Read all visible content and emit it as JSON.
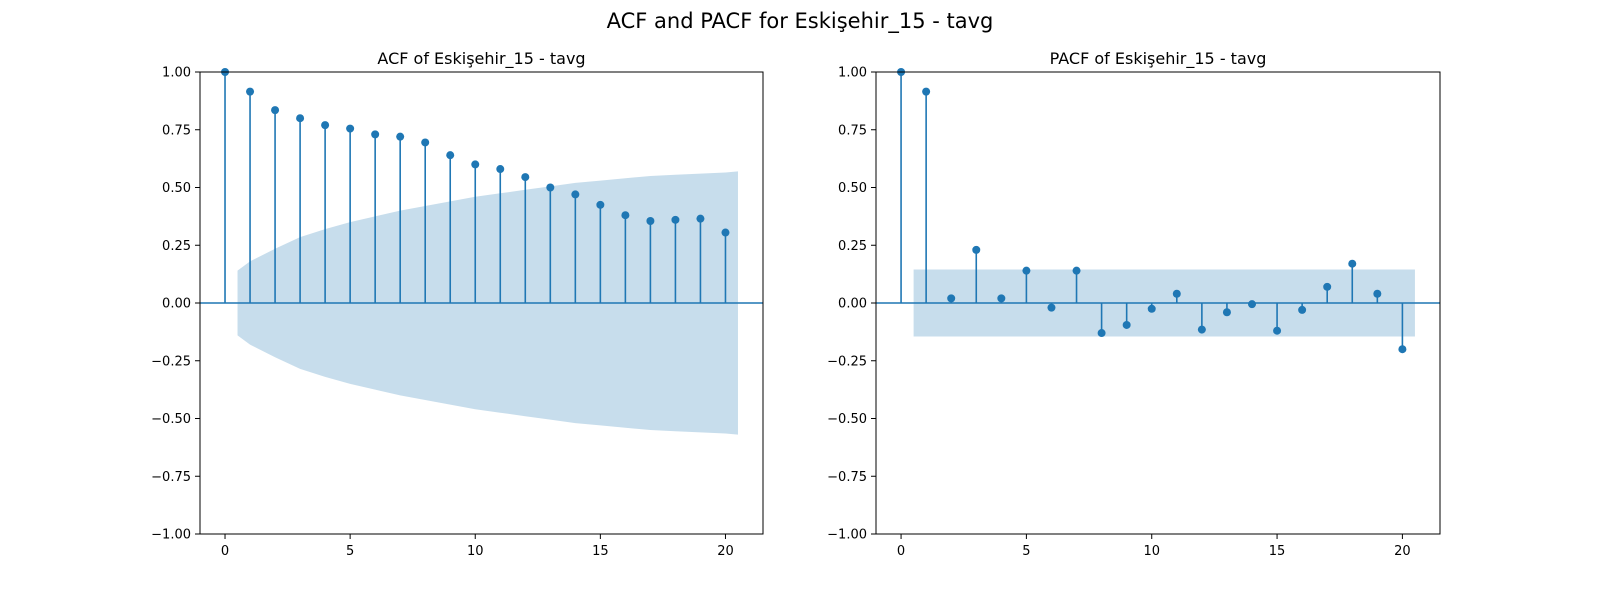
{
  "figure_title": "ACF and PACF for Eskişehir_15 - tavg",
  "colors": {
    "stem": "#1f77b4",
    "confidence_band": "#1f77b4",
    "frame": "#000000",
    "background": "#ffffff"
  },
  "chart_data": [
    {
      "type": "stem",
      "title": "ACF of Eskişehir_15 - tavg",
      "xlabel": "",
      "ylabel": "",
      "xlim": [
        -1,
        21.5
      ],
      "ylim": [
        -1.0,
        1.0
      ],
      "x_ticks": [
        0,
        5,
        10,
        15,
        20
      ],
      "y_ticks": [
        -1.0,
        -0.75,
        -0.5,
        -0.25,
        0.0,
        0.25,
        0.5,
        0.75,
        1.0
      ],
      "y_tick_labels": [
        "−1.00",
        "−0.75",
        "−0.50",
        "−0.25",
        "0.00",
        "0.25",
        "0.50",
        "0.75",
        "1.00"
      ],
      "grid": false,
      "lags": [
        0,
        1,
        2,
        3,
        4,
        5,
        6,
        7,
        8,
        9,
        10,
        11,
        12,
        13,
        14,
        15,
        16,
        17,
        18,
        19,
        20
      ],
      "values": [
        1.0,
        0.915,
        0.835,
        0.8,
        0.77,
        0.755,
        0.73,
        0.72,
        0.695,
        0.64,
        0.6,
        0.58,
        0.545,
        0.5,
        0.47,
        0.425,
        0.38,
        0.355,
        0.36,
        0.365,
        0.305
      ],
      "confidence_band": {
        "lags": [
          0.5,
          1,
          2,
          3,
          4,
          5,
          6,
          7,
          8,
          9,
          10,
          11,
          12,
          13,
          14,
          15,
          16,
          17,
          18,
          19,
          20,
          20.5
        ],
        "upper": [
          0.14,
          0.18,
          0.235,
          0.285,
          0.32,
          0.35,
          0.375,
          0.4,
          0.42,
          0.44,
          0.46,
          0.475,
          0.49,
          0.505,
          0.52,
          0.53,
          0.54,
          0.55,
          0.555,
          0.56,
          0.565,
          0.57
        ],
        "lower": [
          -0.14,
          -0.18,
          -0.235,
          -0.285,
          -0.32,
          -0.35,
          -0.375,
          -0.4,
          -0.42,
          -0.44,
          -0.46,
          -0.475,
          -0.49,
          -0.505,
          -0.52,
          -0.53,
          -0.54,
          -0.55,
          -0.555,
          -0.56,
          -0.565,
          -0.57
        ]
      }
    },
    {
      "type": "stem",
      "title": "PACF of Eskişehir_15 - tavg",
      "xlabel": "",
      "ylabel": "",
      "xlim": [
        -1,
        21.5
      ],
      "ylim": [
        -1.0,
        1.0
      ],
      "x_ticks": [
        0,
        5,
        10,
        15,
        20
      ],
      "y_ticks": [
        -1.0,
        -0.75,
        -0.5,
        -0.25,
        0.0,
        0.25,
        0.5,
        0.75,
        1.0
      ],
      "y_tick_labels": [
        "−1.00",
        "−0.75",
        "−0.50",
        "−0.25",
        "0.00",
        "0.25",
        "0.50",
        "0.75",
        "1.00"
      ],
      "grid": false,
      "lags": [
        0,
        1,
        2,
        3,
        4,
        5,
        6,
        7,
        8,
        9,
        10,
        11,
        12,
        13,
        14,
        15,
        16,
        17,
        18,
        19,
        20
      ],
      "values": [
        1.0,
        0.915,
        0.02,
        0.23,
        0.02,
        0.14,
        -0.02,
        0.14,
        -0.13,
        -0.095,
        -0.025,
        0.04,
        -0.115,
        -0.04,
        -0.005,
        -0.12,
        -0.03,
        0.07,
        0.17,
        0.04,
        -0.2
      ],
      "confidence_band": {
        "lags": [
          0.5,
          20.5
        ],
        "upper": [
          0.145,
          0.145
        ],
        "lower": [
          -0.145,
          -0.145
        ]
      }
    }
  ]
}
